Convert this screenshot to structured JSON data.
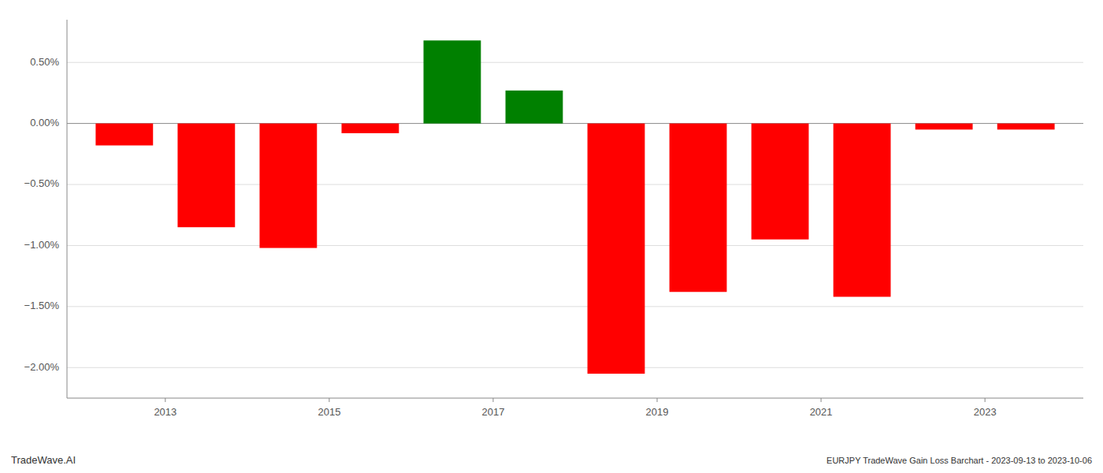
{
  "chart_data": {
    "type": "bar",
    "x": [
      2012.5,
      2013.5,
      2014.5,
      2015.5,
      2016.5,
      2017.5,
      2018.5,
      2019.5,
      2020.5,
      2021.5,
      2022.5,
      2023.5
    ],
    "values": [
      -0.18,
      -0.85,
      -1.02,
      -0.08,
      0.68,
      0.27,
      -2.05,
      -1.38,
      -0.95,
      -1.42,
      -0.05,
      -0.05
    ],
    "colors": [
      "#ff0000",
      "#ff0000",
      "#ff0000",
      "#ff0000",
      "#008000",
      "#008000",
      "#ff0000",
      "#ff0000",
      "#ff0000",
      "#ff0000",
      "#ff0000",
      "#ff0000"
    ],
    "xlim": [
      2011.8,
      2024.2
    ],
    "xticks": [
      2013,
      2015,
      2017,
      2019,
      2021,
      2023
    ],
    "ylim": [
      -2.25,
      0.85
    ],
    "yticks": [
      {
        "value": -2.0,
        "label": "−2.00%"
      },
      {
        "value": -1.5,
        "label": "−1.50%"
      },
      {
        "value": -1.0,
        "label": "−1.00%"
      },
      {
        "value": -0.5,
        "label": "−0.50%"
      },
      {
        "value": 0.0,
        "label": "0.00%"
      },
      {
        "value": 0.5,
        "label": "0.50%"
      }
    ],
    "grid": true,
    "annotations": [
      "TradeWave.AI",
      "EURJPY TradeWave Gain Loss Barchart - 2023-09-13 to 2023-10-06"
    ]
  }
}
